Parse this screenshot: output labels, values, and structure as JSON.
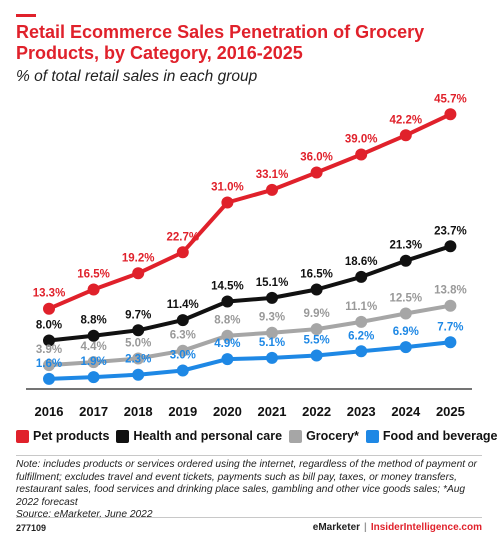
{
  "header": {
    "title": "Retail Ecommerce Sales Penetration of Grocery Products, by Category, 2016-2025",
    "subtitle": "% of total retail sales in each group"
  },
  "chart_data": {
    "type": "line",
    "x": [
      "2016",
      "2017",
      "2018",
      "2019",
      "2020",
      "2021",
      "2022",
      "2023",
      "2024",
      "2025"
    ],
    "ylim": [
      0,
      50
    ],
    "grid": false,
    "legend_position": "bottom",
    "series": [
      {
        "name": "Pet products",
        "color": "#e0212b",
        "label_color": "#e0212b",
        "values": [
          13.3,
          16.5,
          19.2,
          22.7,
          31.0,
          33.1,
          36.0,
          39.0,
          42.2,
          45.7
        ],
        "labels": [
          "13.3%",
          "16.5%",
          "19.2%",
          "22.7%",
          "31.0%",
          "33.1%",
          "36.0%",
          "39.0%",
          "42.2%",
          "45.7%"
        ]
      },
      {
        "name": "Health and personal care",
        "color": "#111111",
        "label_color": "#111111",
        "values": [
          8.0,
          8.8,
          9.7,
          11.4,
          14.5,
          15.1,
          16.5,
          18.6,
          21.3,
          23.7
        ],
        "labels": [
          "8.0%",
          "8.8%",
          "9.7%",
          "11.4%",
          "14.5%",
          "15.1%",
          "16.5%",
          "18.6%",
          "21.3%",
          "23.7%"
        ]
      },
      {
        "name": "Grocery*",
        "color": "#a6a6a6",
        "label_color": "#999999",
        "values": [
          3.9,
          4.4,
          5.0,
          6.3,
          8.8,
          9.3,
          9.9,
          11.1,
          12.5,
          13.8
        ],
        "labels": [
          "3.9%",
          "4.4%",
          "5.0%",
          "6.3%",
          "8.8%",
          "9.3%",
          "9.9%",
          "11.1%",
          "12.5%",
          "13.8%"
        ]
      },
      {
        "name": "Food and beverage",
        "color": "#1e88e5",
        "label_color": "#1e88e5",
        "values": [
          1.6,
          1.9,
          2.3,
          3.0,
          4.9,
          5.1,
          5.5,
          6.2,
          6.9,
          7.7
        ],
        "labels": [
          "1.6%",
          "1.9%",
          "2.3%",
          "3.0%",
          "4.9%",
          "5.1%",
          "5.5%",
          "6.2%",
          "6.9%",
          "7.7%"
        ]
      }
    ]
  },
  "legend": {
    "items": [
      {
        "label": "Pet products",
        "color": "#e0212b"
      },
      {
        "label": "Health and personal care",
        "color": "#111111"
      },
      {
        "label": "Grocery*",
        "color": "#a6a6a6"
      },
      {
        "label": "Food and beverage",
        "color": "#1e88e5"
      }
    ]
  },
  "note": {
    "text": "Note: includes products or services ordered using the internet, regardless of the method of payment or fulfillment; excludes travel and event tickets, payments such as bill pay, taxes, or money transfers, restaurant sales, food services and drinking place sales, gambling and other vice goods sales; *Aug 2022 forecast",
    "source": "Source: eMarketer, June 2022"
  },
  "footer": {
    "chart_id": "277109",
    "brand1": "eMarketer",
    "separator": "|",
    "brand2": "InsiderIntelligence.com"
  }
}
